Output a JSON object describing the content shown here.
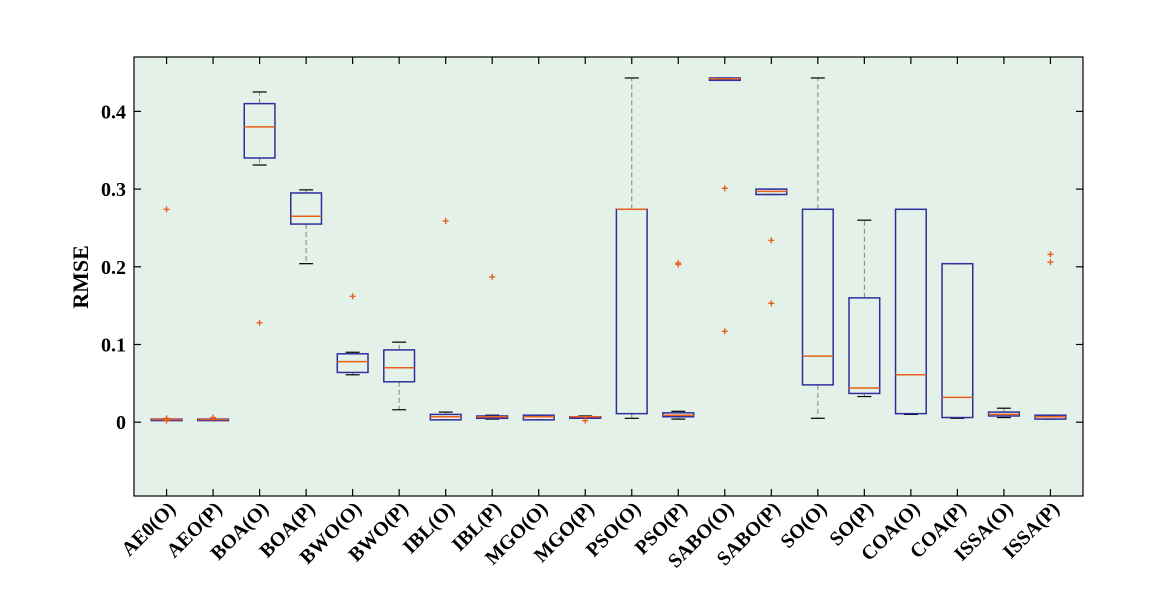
{
  "chart_data": {
    "type": "boxplot",
    "title": "",
    "xlabel": "",
    "ylabel": "RMSE",
    "ylim": [
      -0.095,
      0.47
    ],
    "yticks": [
      0,
      0.1,
      0.2,
      0.3,
      0.4
    ],
    "ytick_labels": [
      "0",
      "0.1",
      "0.2",
      "0.3",
      "0.4"
    ],
    "grid": false,
    "legend": "none",
    "colors": {
      "plot_background": "#e3f1e8",
      "box": "#2e2f9c",
      "median": "#e8601c",
      "outlier": "#e8601c",
      "whisker": "#808080",
      "cap": "#000000",
      "axis": "#000000"
    },
    "categories": [
      "AE0(O)",
      "AEO(P)",
      "BOA(O)",
      "BOA(P)",
      "BWO(O)",
      "BWO(P)",
      "IBL(O)",
      "IBL(P)",
      "MGO(O)",
      "MGO(P)",
      "PSO(O)",
      "PSO(P)",
      "SABO(O)",
      "SABO(P)",
      "SO(O)",
      "SO(P)",
      "COA(O)",
      "COA(P)",
      "ISSA(O)",
      "ISSA(P)"
    ],
    "boxes": [
      {
        "min": 0.003,
        "q1": 0.003,
        "median": 0.0035,
        "q3": 0.004,
        "max": 0.004,
        "outliers": [
          0.274,
          0.005,
          0.002
        ]
      },
      {
        "min": 0.003,
        "q1": 0.003,
        "median": 0.0035,
        "q3": 0.004,
        "max": 0.004,
        "outliers": [
          0.006
        ]
      },
      {
        "min": 0.331,
        "q1": 0.34,
        "median": 0.38,
        "q3": 0.41,
        "max": 0.425,
        "outliers": [
          0.128
        ]
      },
      {
        "min": 0.204,
        "q1": 0.255,
        "median": 0.265,
        "q3": 0.295,
        "max": 0.299,
        "outliers": []
      },
      {
        "min": 0.061,
        "q1": 0.064,
        "median": 0.078,
        "q3": 0.088,
        "max": 0.09,
        "outliers": [
          0.162
        ]
      },
      {
        "min": 0.016,
        "q1": 0.052,
        "median": 0.07,
        "q3": 0.093,
        "max": 0.103,
        "outliers": []
      },
      {
        "min": 0.003,
        "q1": 0.003,
        "median": 0.007,
        "q3": 0.01,
        "max": 0.013,
        "outliers": [
          0.259
        ]
      },
      {
        "min": 0.004,
        "q1": 0.005,
        "median": 0.007,
        "q3": 0.008,
        "max": 0.009,
        "outliers": [
          0.187
        ]
      },
      {
        "min": 0.003,
        "q1": 0.003,
        "median": 0.007,
        "q3": 0.009,
        "max": 0.009,
        "outliers": []
      },
      {
        "min": 0.006,
        "q1": 0.006,
        "median": 0.007,
        "q3": 0.007,
        "max": 0.008,
        "outliers": [
          0.002
        ]
      },
      {
        "min": 0.005,
        "q1": 0.011,
        "median": 0.274,
        "q3": 0.274,
        "max": 0.443,
        "outliers": []
      },
      {
        "min": 0.004,
        "q1": 0.007,
        "median": 0.009,
        "q3": 0.012,
        "max": 0.014,
        "outliers": [
          0.205,
          0.203
        ]
      },
      {
        "min": 0.44,
        "q1": 0.44,
        "median": 0.442,
        "q3": 0.443,
        "max": 0.443,
        "outliers": [
          0.301,
          0.117
        ]
      },
      {
        "min": 0.293,
        "q1": 0.293,
        "median": 0.297,
        "q3": 0.3,
        "max": 0.3,
        "outliers": [
          0.234,
          0.153
        ]
      },
      {
        "min": 0.005,
        "q1": 0.048,
        "median": 0.085,
        "q3": 0.274,
        "max": 0.443,
        "outliers": []
      },
      {
        "min": 0.033,
        "q1": 0.037,
        "median": 0.044,
        "q3": 0.16,
        "max": 0.26,
        "outliers": []
      },
      {
        "min": 0.01,
        "q1": 0.011,
        "median": 0.061,
        "q3": 0.274,
        "max": 0.274,
        "outliers": []
      },
      {
        "min": 0.005,
        "q1": 0.006,
        "median": 0.032,
        "q3": 0.204,
        "max": 0.204,
        "outliers": []
      },
      {
        "min": 0.006,
        "q1": 0.008,
        "median": 0.01,
        "q3": 0.013,
        "max": 0.018,
        "outliers": []
      },
      {
        "min": 0.004,
        "q1": 0.004,
        "median": 0.007,
        "q3": 0.009,
        "max": 0.009,
        "outliers": [
          0.216,
          0.206
        ]
      }
    ]
  }
}
